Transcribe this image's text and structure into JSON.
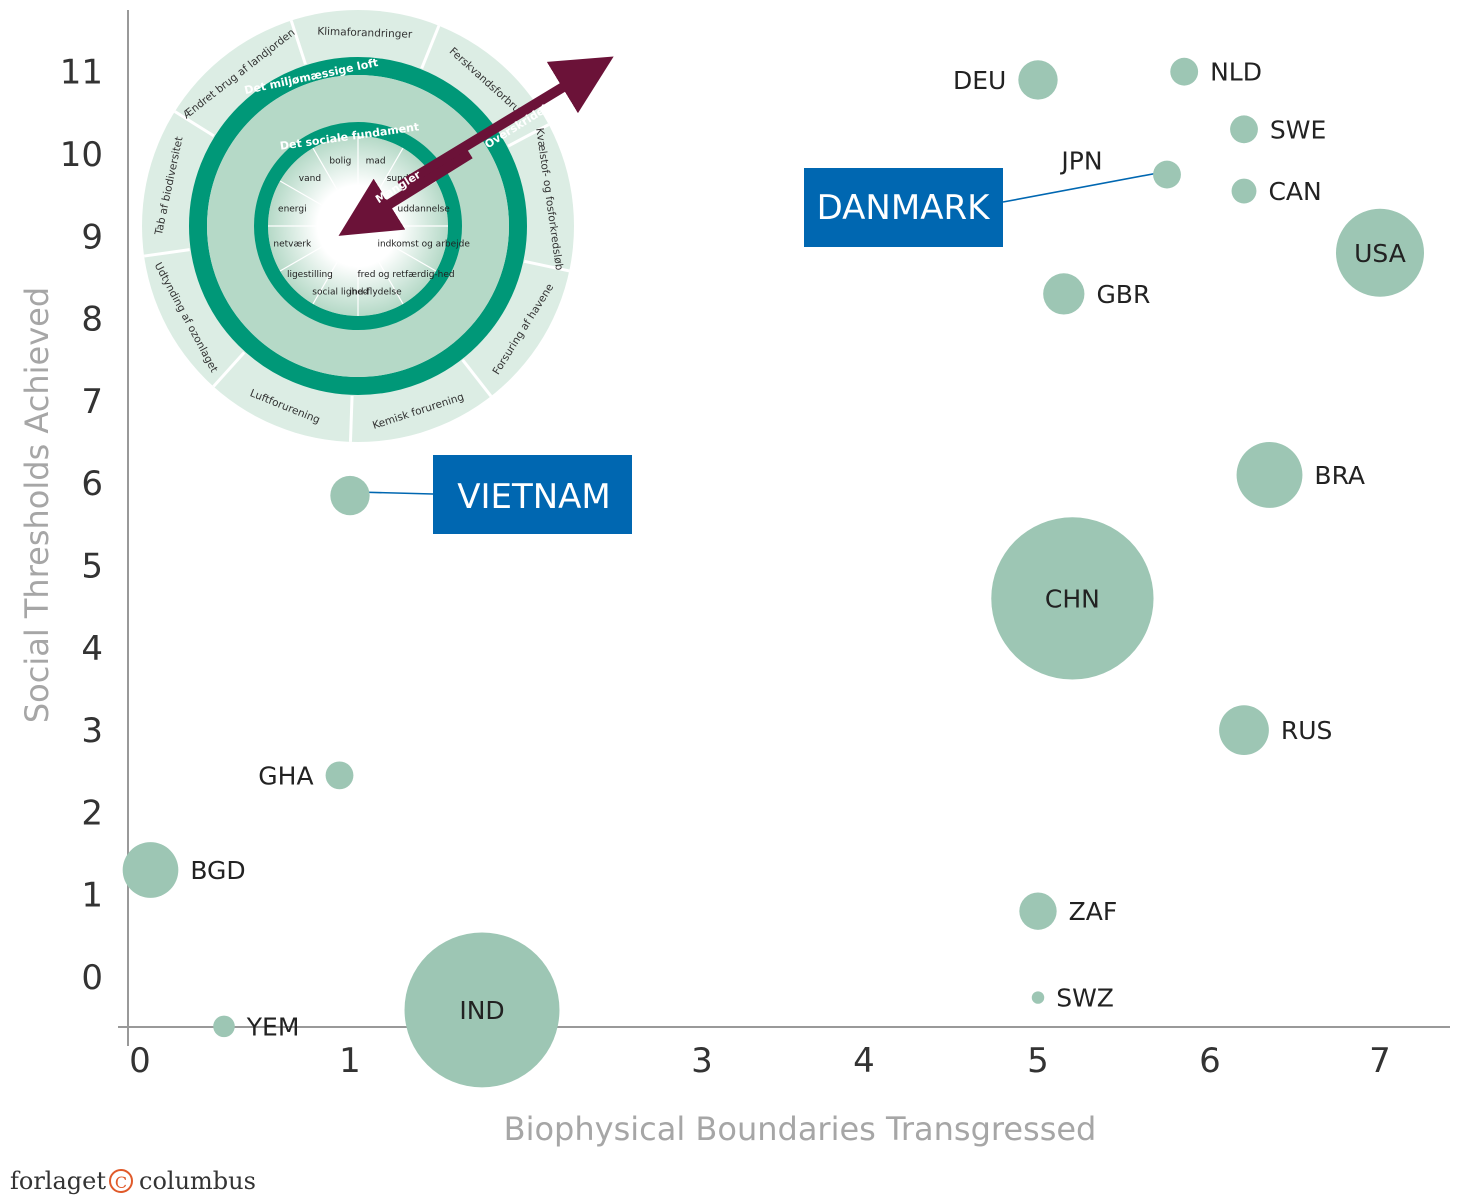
{
  "chart_data": {
    "type": "scatter",
    "subtype": "bubble",
    "xlabel": "Biophysical Boundaries Transgressed",
    "ylabel": "Social Thresholds Achieved",
    "x_ticks": [
      "0",
      "1",
      "3",
      "4",
      "5",
      "6",
      "7"
    ],
    "y_ticks": [
      "0",
      "1",
      "2",
      "3",
      "4",
      "5",
      "6",
      "7",
      "8",
      "9",
      "10",
      "11"
    ],
    "xlim": [
      0,
      7.4
    ],
    "ylim": [
      -0.6,
      11.7
    ],
    "grid": false,
    "bubble_color": "#9dc6b4",
    "points": [
      {
        "label": "DEU",
        "x": 5.0,
        "y": 10.9,
        "size": 0.2,
        "label_pos": "left"
      },
      {
        "label": "NLD",
        "x": 5.85,
        "y": 11.0,
        "size": 0.1,
        "label_pos": "right"
      },
      {
        "label": "SWE",
        "x": 6.2,
        "y": 10.3,
        "size": 0.1,
        "label_pos": "right"
      },
      {
        "label": "JPN",
        "x": 5.75,
        "y": 9.75,
        "size": 0.1,
        "label_pos": "above"
      },
      {
        "label": "CAN",
        "x": 6.2,
        "y": 9.55,
        "size": 0.08,
        "label_pos": "right"
      },
      {
        "label": "USA",
        "x": 7.0,
        "y": 8.8,
        "size": 1.0,
        "label_pos": "center"
      },
      {
        "label": "GBR",
        "x": 5.15,
        "y": 8.3,
        "size": 0.22,
        "label_pos": "right"
      },
      {
        "label": "BRA",
        "x": 6.35,
        "y": 6.1,
        "size": 0.56,
        "label_pos": "right"
      },
      {
        "label": "VIETNAM",
        "x": 1.0,
        "y": 5.85,
        "size": 0.2,
        "label_pos": "none"
      },
      {
        "label": "CHN",
        "x": 5.2,
        "y": 4.6,
        "size": 3.4,
        "label_pos": "center"
      },
      {
        "label": "RUS",
        "x": 6.2,
        "y": 3.0,
        "size": 0.32,
        "label_pos": "right"
      },
      {
        "label": "GHA",
        "x": 0.95,
        "y": 2.45,
        "size": 0.1,
        "label_pos": "left"
      },
      {
        "label": "BGD",
        "x": 0.05,
        "y": 1.3,
        "size": 0.4,
        "label_pos": "right"
      },
      {
        "label": "ZAF",
        "x": 5.0,
        "y": 0.8,
        "size": 0.18,
        "label_pos": "right"
      },
      {
        "label": "SWZ",
        "x": 5.0,
        "y": -0.25,
        "size": 0.02,
        "label_pos": "right"
      },
      {
        "label": "YEM",
        "x": 0.4,
        "y": -0.6,
        "size": 0.06,
        "label_pos": "right"
      },
      {
        "label": "IND",
        "x": 1.75,
        "y": -0.4,
        "size": 3.1,
        "label_pos": "center"
      }
    ],
    "callouts": [
      {
        "text": "DANMARK",
        "target": "JPN",
        "color": "#0067b1"
      },
      {
        "text": "VIETNAM",
        "target": "VIETNAM",
        "color": "#0067b1"
      }
    ]
  },
  "doughnut": {
    "inner_title": "Det sociale fundament",
    "outer_title": "Det miljømæssige loft",
    "shortfall_label": "Mangler",
    "overshoot_label": "Overskridelse",
    "social_items": [
      "bolig",
      "mad",
      "sundhed",
      "uddannelse",
      "indkomst og arbejde",
      "fred og retfærdig-hed",
      "ind-flydelse",
      "social lighed",
      "ligestilling",
      "netværk",
      "energi",
      "vand"
    ],
    "planetary_items": [
      "Klimaforandringer",
      "Ferskvandsforbrug",
      "Kvælstof- og fosforkredsløb",
      "Forsuring af havene",
      "Kemisk forurening",
      "Luftforurening",
      "Udtynding af ozonlaget",
      "Tab af biodiversitet",
      "Ændret brug af landjorden"
    ],
    "ring_color": "#009878",
    "fill_color": "#b5d9c7",
    "outer_color": "#dcede4",
    "arrow_color": "#6b1238"
  },
  "publisher": {
    "name_left": "forlaget",
    "symbol": "C",
    "name_right": "columbus"
  }
}
